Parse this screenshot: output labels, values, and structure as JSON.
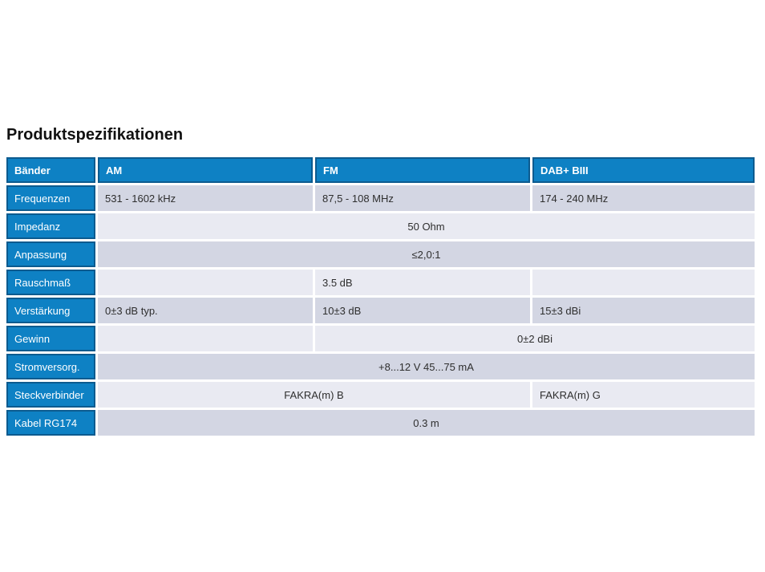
{
  "page": {
    "title": "Produktspezifikationen"
  },
  "colors": {
    "header_blue": "#0e81c4",
    "cell_border_navy": "#0c5b8f",
    "row_dark": "#d3d6e3",
    "row_light": "#e9eaf2",
    "value_text": "#2e2e2e",
    "header_text": "#ffffff",
    "title_text": "#111111"
  },
  "table": {
    "headers": [
      "Bänder",
      "AM",
      "FM",
      "DAB+ BIII"
    ],
    "rows": [
      {
        "label": "Frequenzen",
        "cells": [
          {
            "text": "531 - 1602 kHz",
            "span": 1,
            "align": "left"
          },
          {
            "text": "87,5 - 108 MHz",
            "span": 1,
            "align": "left"
          },
          {
            "text": "174 - 240 MHz",
            "span": 1,
            "align": "left"
          }
        ]
      },
      {
        "label": "Impedanz",
        "cells": [
          {
            "text": "50 Ohm",
            "span": 3,
            "align": "center"
          }
        ]
      },
      {
        "label": "Anpassung",
        "cells": [
          {
            "text": "≤2,0:1",
            "span": 3,
            "align": "center"
          }
        ]
      },
      {
        "label": "Rauschmaß",
        "cells": [
          {
            "text": "",
            "span": 1,
            "align": "left"
          },
          {
            "text": "3.5 dB",
            "span": 1,
            "align": "left"
          },
          {
            "text": "",
            "span": 1,
            "align": "left"
          }
        ]
      },
      {
        "label": "Verstärkung",
        "cells": [
          {
            "text": "0±3 dB typ.",
            "span": 1,
            "align": "left"
          },
          {
            "text": "10±3 dB",
            "span": 1,
            "align": "left"
          },
          {
            "text": "15±3 dBi",
            "span": 1,
            "align": "left"
          }
        ]
      },
      {
        "label": "Gewinn",
        "cells": [
          {
            "text": "",
            "span": 1,
            "align": "left"
          },
          {
            "text": "0±2 dBi",
            "span": 2,
            "align": "center"
          }
        ]
      },
      {
        "label": "Stromversorg.",
        "cells": [
          {
            "text": "+8...12 V 45...75 mA",
            "span": 3,
            "align": "center"
          }
        ]
      },
      {
        "label": "Steckverbinder",
        "cells": [
          {
            "text": "FAKRA(m) B",
            "span": 2,
            "align": "center"
          },
          {
            "text": "FAKRA(m) G",
            "span": 1,
            "align": "left"
          }
        ]
      },
      {
        "label": "Kabel RG174",
        "cells": [
          {
            "text": "0.3 m",
            "span": 3,
            "align": "center"
          }
        ]
      }
    ]
  }
}
